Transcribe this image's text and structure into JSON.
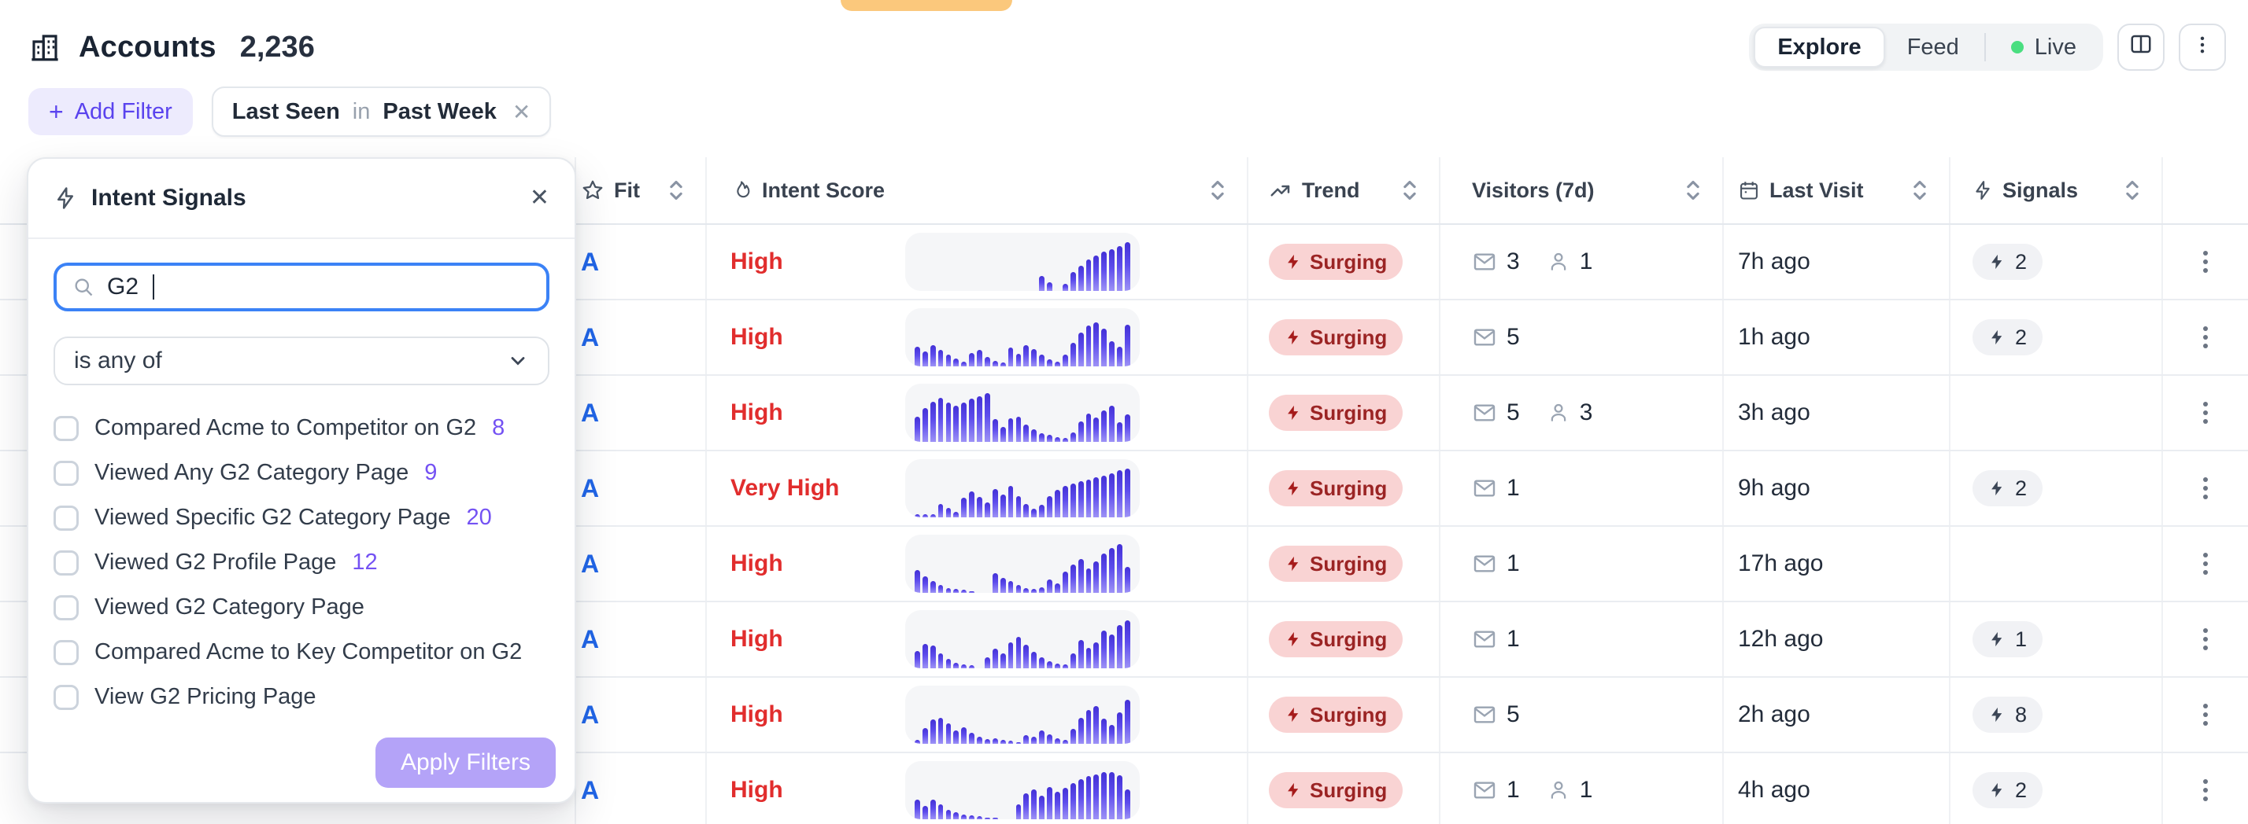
{
  "colors": {
    "toast": "#fbc87c",
    "accent_purple": "#5a43ee",
    "accent_purple_bg": "#edebfd",
    "fit_blue": "#2166e8",
    "intent_red": "#e12d2d",
    "surging_bg": "#f9d3d3",
    "surging_text": "#9b2424",
    "surging_bolt": "#a61b1b",
    "apply_disabled_bg": "#b4a3f8",
    "live_green": "#4ade80"
  },
  "header": {
    "title": "Accounts",
    "count": "2,236",
    "view_tabs": [
      {
        "label": "Explore",
        "active": true
      },
      {
        "label": "Feed",
        "active": false
      },
      {
        "label": "Live",
        "active": false,
        "dot": true
      }
    ]
  },
  "filter_bar": {
    "add_filter_label": "Add Filter",
    "chip": {
      "field": "Last Seen",
      "operator": "in",
      "value": "Past Week"
    }
  },
  "popover": {
    "title": "Intent Signals",
    "search_value": "G2",
    "operator": "is any of",
    "options": [
      {
        "label": "Compared Acme to Competitor on G2",
        "count": "8"
      },
      {
        "label": "Viewed Any G2 Category Page",
        "count": "9"
      },
      {
        "label": "Viewed Specific G2 Category Page",
        "count": "20"
      },
      {
        "label": "Viewed G2 Profile Page",
        "count": "12"
      },
      {
        "label": "Viewed G2 Category Page",
        "count": ""
      },
      {
        "label": "Compared Acme to Key Competitor on G2",
        "count": ""
      },
      {
        "label": "View G2 Pricing Page",
        "count": ""
      }
    ],
    "apply_label": "Apply Filters"
  },
  "table": {
    "columns": [
      {
        "id": "account",
        "label": ""
      },
      {
        "id": "fit",
        "label": "Fit",
        "icon": "star",
        "sortable": true
      },
      {
        "id": "intent",
        "label": "Intent Score",
        "icon": "flame",
        "sortable": true
      },
      {
        "id": "trend",
        "label": "Trend",
        "icon": "trending-up",
        "sortable": true
      },
      {
        "id": "visitors",
        "label": "Visitors (7d)",
        "sortable": true
      },
      {
        "id": "last_visit",
        "label": "Last Visit",
        "icon": "calendar",
        "sortable": true
      },
      {
        "id": "signals",
        "label": "Signals",
        "icon": "bolt",
        "sortable": true
      },
      {
        "id": "actions",
        "label": ""
      }
    ],
    "rows": [
      {
        "fit": "A",
        "intent": "High",
        "trend": "Surging",
        "email": "3",
        "people": "1",
        "last_visit": "7h ago",
        "signals": "2",
        "spark": [
          0,
          0,
          0,
          0,
          0,
          0,
          0,
          0,
          0,
          0,
          0,
          0,
          0,
          0,
          0,
          0,
          30,
          18,
          0,
          14,
          38,
          52,
          64,
          72,
          80,
          86,
          92,
          100
        ]
      },
      {
        "fit": "A",
        "intent": "High",
        "trend": "Surging",
        "email": "5",
        "people": "",
        "last_visit": "1h ago",
        "signals": "2",
        "spark": [
          40,
          30,
          44,
          34,
          24,
          16,
          10,
          28,
          34,
          20,
          12,
          8,
          38,
          26,
          44,
          36,
          24,
          14,
          10,
          24,
          48,
          70,
          84,
          90,
          78,
          52,
          40,
          86
        ]
      },
      {
        "fit": "A",
        "intent": "High",
        "trend": "Surging",
        "email": "5",
        "people": "3",
        "last_visit": "3h ago",
        "signals": "",
        "spark": [
          52,
          70,
          82,
          90,
          80,
          74,
          80,
          88,
          94,
          100,
          46,
          30,
          48,
          52,
          36,
          26,
          18,
          14,
          10,
          8,
          20,
          42,
          58,
          50,
          64,
          74,
          40,
          56
        ]
      },
      {
        "fit": "A",
        "intent": "Very High",
        "trend": "Surging",
        "email": "1",
        "people": "",
        "last_visit": "9h ago",
        "signals": "2",
        "spark": [
          6,
          6,
          6,
          28,
          20,
          12,
          40,
          54,
          42,
          30,
          58,
          46,
          64,
          44,
          28,
          18,
          26,
          44,
          56,
          64,
          70,
          74,
          78,
          82,
          86,
          90,
          96,
          100
        ]
      },
      {
        "fit": "A",
        "intent": "High",
        "trend": "Surging",
        "email": "1",
        "people": "",
        "last_visit": "17h ago",
        "signals": "",
        "spark": [
          46,
          34,
          24,
          16,
          10,
          8,
          6,
          4,
          0,
          0,
          40,
          30,
          24,
          16,
          10,
          8,
          12,
          28,
          20,
          44,
          58,
          70,
          50,
          64,
          80,
          92,
          100,
          54
        ]
      },
      {
        "fit": "A",
        "intent": "High",
        "trend": "Surging",
        "email": "1",
        "people": "",
        "last_visit": "12h ago",
        "signals": "1",
        "spark": [
          36,
          50,
          46,
          30,
          20,
          12,
          8,
          6,
          0,
          22,
          40,
          30,
          54,
          64,
          48,
          34,
          22,
          14,
          10,
          8,
          30,
          58,
          42,
          54,
          78,
          70,
          88,
          98
        ]
      },
      {
        "fit": "A",
        "intent": "High",
        "trend": "Surging",
        "email": "5",
        "people": "",
        "last_visit": "2h ago",
        "signals": "8",
        "spark": [
          8,
          32,
          50,
          54,
          42,
          28,
          34,
          22,
          14,
          10,
          12,
          8,
          6,
          4,
          18,
          14,
          28,
          20,
          12,
          8,
          30,
          54,
          70,
          78,
          52,
          38,
          64,
          90
        ]
      },
      {
        "fit": "A",
        "intent": "High",
        "trend": "Surging",
        "email": "1",
        "people": "1",
        "last_visit": "4h ago",
        "signals": "2",
        "spark": [
          40,
          28,
          40,
          30,
          20,
          14,
          10,
          8,
          6,
          4,
          4,
          0,
          0,
          30,
          54,
          62,
          48,
          66,
          56,
          64,
          74,
          82,
          88,
          92,
          96,
          96,
          90,
          62
        ]
      }
    ]
  }
}
